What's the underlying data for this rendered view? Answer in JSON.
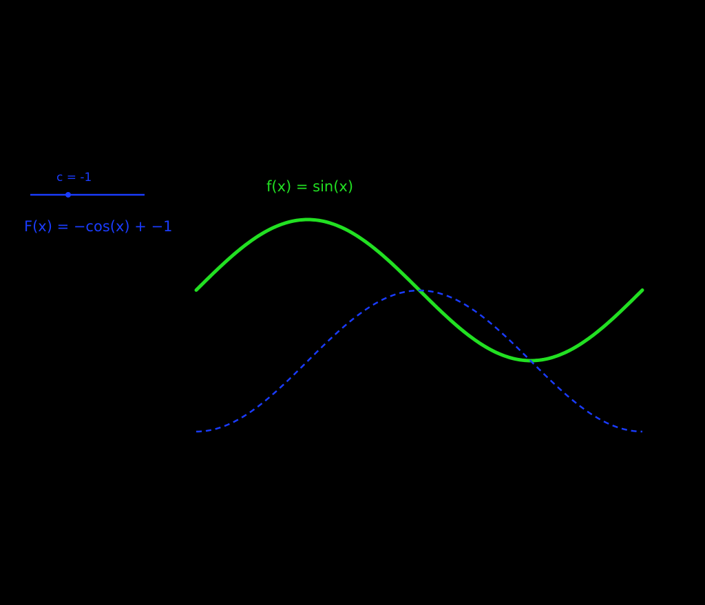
{
  "slider": {
    "label": "c = -1"
  },
  "functions": [
    {
      "label": "f(x) = sin(x)"
    },
    {
      "label": "F(x) = −cos(x) + −1"
    }
  ]
}
